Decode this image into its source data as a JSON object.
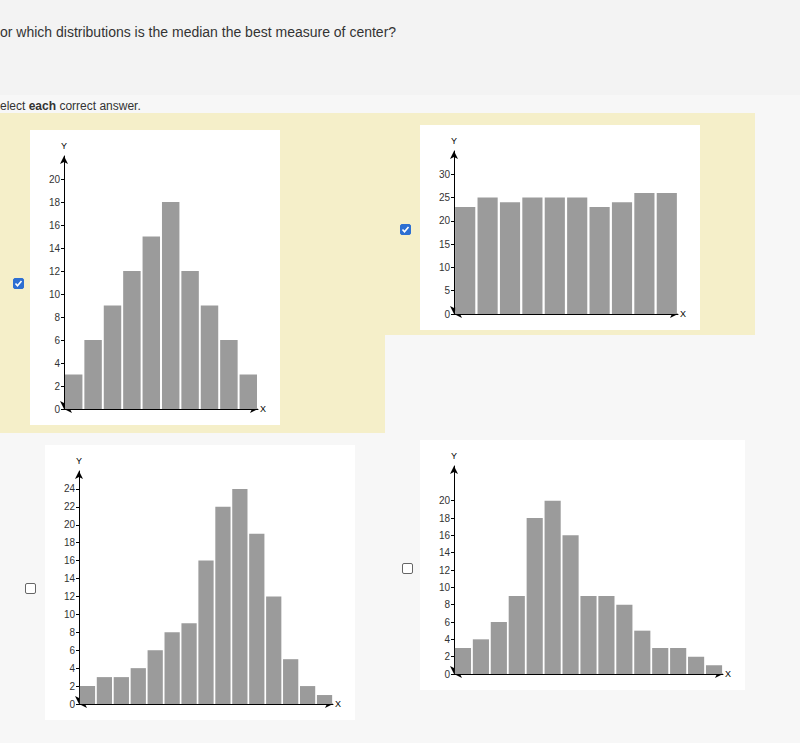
{
  "question": "or which distributions is the median the best measure of center?",
  "instruction": {
    "before": "elect ",
    "bold": "each",
    "after": " correct answer."
  },
  "checked": [
    true,
    true,
    false,
    false
  ],
  "chart_data": [
    {
      "type": "bar",
      "x_label": "X",
      "y_label": "Y",
      "color": "#9b9b9b",
      "grid": false,
      "tick_labels": "y",
      "categories": [
        null,
        null,
        null,
        null,
        null,
        null,
        null,
        null,
        null,
        null
      ],
      "values": [
        3,
        6,
        9,
        12,
        15,
        18,
        12,
        9,
        6,
        3
      ],
      "ylim": [
        0,
        22
      ],
      "yticks": [
        0,
        2,
        4,
        6,
        8,
        10,
        12,
        14,
        16,
        18,
        20
      ]
    },
    {
      "type": "bar",
      "x_label": "X",
      "y_label": "Y",
      "color": "#9b9b9b",
      "grid": false,
      "tick_labels": "y",
      "categories": [
        null,
        null,
        null,
        null,
        null,
        null,
        null,
        null,
        null,
        null
      ],
      "values": [
        23,
        25,
        24,
        25,
        25,
        25,
        23,
        24,
        26,
        26
      ],
      "ylim": [
        0,
        35
      ],
      "yticks": [
        0,
        5,
        10,
        15,
        20,
        25,
        30
      ]
    },
    {
      "type": "bar",
      "x_label": "X",
      "y_label": "Y",
      "color": "#9b9b9b",
      "grid": false,
      "tick_labels": "y",
      "categories": [
        null,
        null,
        null,
        null,
        null,
        null,
        null,
        null,
        null,
        null,
        null,
        null,
        null,
        null,
        null
      ],
      "values": [
        2,
        3,
        3,
        4,
        6,
        8,
        9,
        16,
        22,
        24,
        19,
        12,
        5,
        2,
        1
      ],
      "ylim": [
        0,
        26
      ],
      "yticks": [
        0,
        2,
        4,
        6,
        8,
        10,
        12,
        14,
        16,
        18,
        20,
        22,
        24
      ]
    },
    {
      "type": "bar",
      "x_label": "X",
      "y_label": "Y",
      "color": "#9b9b9b",
      "grid": false,
      "tick_labels": "y",
      "categories": [
        null,
        null,
        null,
        null,
        null,
        null,
        null,
        null,
        null,
        null,
        null,
        null,
        null,
        null,
        null
      ],
      "values": [
        3,
        4,
        6,
        9,
        18,
        20,
        16,
        9,
        9,
        8,
        5,
        3,
        3,
        2,
        1
      ],
      "ylim": [
        0,
        24
      ],
      "yticks": [
        0,
        2,
        4,
        6,
        8,
        10,
        12,
        14,
        16,
        18,
        20
      ]
    }
  ]
}
